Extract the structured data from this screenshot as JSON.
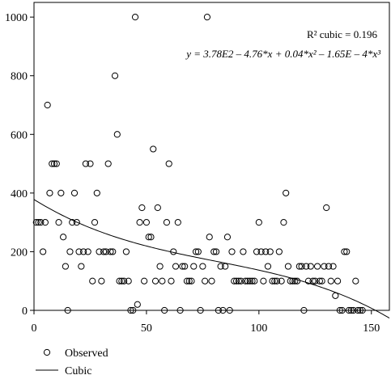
{
  "chart_data": {
    "type": "scatter",
    "title": "",
    "xlabel": "",
    "ylabel": "",
    "xlim": [
      0,
      158
    ],
    "ylim": [
      0,
      1050
    ],
    "x_ticks": [
      0,
      50,
      100,
      150
    ],
    "y_ticks": [
      0,
      200,
      400,
      600,
      800,
      1000
    ],
    "grid": false,
    "legend_position": "bottom-left",
    "annotation": {
      "r2_text": "R² cubic = 0.196",
      "equation": "y = 3.78E2 – 4.76*x + 0.04*x² – 1.65E – 4*x³"
    },
    "series": [
      {
        "name": "Observed",
        "kind": "scatter",
        "marker": "open-circle",
        "color": "#000000",
        "points": [
          [
            1,
            300
          ],
          [
            2,
            300
          ],
          [
            3,
            300
          ],
          [
            4,
            200
          ],
          [
            5,
            300
          ],
          [
            6,
            700
          ],
          [
            7,
            400
          ],
          [
            8,
            500
          ],
          [
            9,
            500
          ],
          [
            10,
            500
          ],
          [
            11,
            300
          ],
          [
            12,
            400
          ],
          [
            13,
            250
          ],
          [
            14,
            150
          ],
          [
            15,
            0
          ],
          [
            16,
            200
          ],
          [
            17,
            300
          ],
          [
            18,
            400
          ],
          [
            19,
            300
          ],
          [
            20,
            200
          ],
          [
            21,
            150
          ],
          [
            22,
            200
          ],
          [
            23,
            500
          ],
          [
            24,
            200
          ],
          [
            25,
            500
          ],
          [
            26,
            100
          ],
          [
            27,
            300
          ],
          [
            28,
            400
          ],
          [
            29,
            200
          ],
          [
            30,
            100
          ],
          [
            31,
            200
          ],
          [
            32,
            200
          ],
          [
            33,
            500
          ],
          [
            34,
            200
          ],
          [
            35,
            200
          ],
          [
            36,
            800
          ],
          [
            37,
            600
          ],
          [
            38,
            100
          ],
          [
            39,
            100
          ],
          [
            40,
            100
          ],
          [
            41,
            200
          ],
          [
            42,
            100
          ],
          [
            43,
            0
          ],
          [
            44,
            0
          ],
          [
            45,
            1000
          ],
          [
            46,
            20
          ],
          [
            47,
            300
          ],
          [
            48,
            350
          ],
          [
            49,
            100
          ],
          [
            50,
            300
          ],
          [
            51,
            250
          ],
          [
            52,
            250
          ],
          [
            53,
            550
          ],
          [
            54,
            100
          ],
          [
            55,
            350
          ],
          [
            56,
            150
          ],
          [
            57,
            100
          ],
          [
            58,
            0
          ],
          [
            59,
            300
          ],
          [
            60,
            500
          ],
          [
            61,
            100
          ],
          [
            62,
            200
          ],
          [
            63,
            150
          ],
          [
            64,
            300
          ],
          [
            65,
            0
          ],
          [
            66,
            150
          ],
          [
            67,
            150
          ],
          [
            68,
            100
          ],
          [
            69,
            100
          ],
          [
            70,
            100
          ],
          [
            71,
            150
          ],
          [
            72,
            200
          ],
          [
            73,
            200
          ],
          [
            74,
            0
          ],
          [
            75,
            150
          ],
          [
            76,
            100
          ],
          [
            77,
            1000
          ],
          [
            78,
            250
          ],
          [
            79,
            100
          ],
          [
            80,
            200
          ],
          [
            81,
            200
          ],
          [
            82,
            0
          ],
          [
            83,
            150
          ],
          [
            84,
            0
          ],
          [
            85,
            150
          ],
          [
            86,
            250
          ],
          [
            87,
            0
          ],
          [
            88,
            200
          ],
          [
            89,
            100
          ],
          [
            90,
            100
          ],
          [
            91,
            100
          ],
          [
            92,
            100
          ],
          [
            93,
            200
          ],
          [
            94,
            100
          ],
          [
            95,
            100
          ],
          [
            96,
            100
          ],
          [
            97,
            100
          ],
          [
            98,
            100
          ],
          [
            99,
            200
          ],
          [
            100,
            300
          ],
          [
            101,
            200
          ],
          [
            102,
            100
          ],
          [
            103,
            200
          ],
          [
            104,
            150
          ],
          [
            105,
            200
          ],
          [
            106,
            100
          ],
          [
            107,
            100
          ],
          [
            108,
            100
          ],
          [
            109,
            200
          ],
          [
            110,
            100
          ],
          [
            111,
            300
          ],
          [
            112,
            400
          ],
          [
            113,
            150
          ],
          [
            114,
            100
          ],
          [
            115,
            100
          ],
          [
            116,
            100
          ],
          [
            117,
            100
          ],
          [
            118,
            150
          ],
          [
            119,
            150
          ],
          [
            120,
            0
          ],
          [
            121,
            150
          ],
          [
            122,
            100
          ],
          [
            123,
            150
          ],
          [
            124,
            100
          ],
          [
            125,
            100
          ],
          [
            126,
            150
          ],
          [
            127,
            100
          ],
          [
            128,
            100
          ],
          [
            129,
            150
          ],
          [
            130,
            350
          ],
          [
            131,
            150
          ],
          [
            132,
            100
          ],
          [
            133,
            150
          ],
          [
            134,
            50
          ],
          [
            135,
            100
          ],
          [
            136,
            0
          ],
          [
            137,
            0
          ],
          [
            138,
            200
          ],
          [
            139,
            200
          ],
          [
            140,
            0
          ],
          [
            141,
            0
          ],
          [
            142,
            0
          ],
          [
            143,
            100
          ],
          [
            144,
            0
          ],
          [
            145,
            0
          ],
          [
            146,
            0
          ]
        ]
      },
      {
        "name": "Cubic",
        "kind": "line",
        "color": "#000000",
        "coefficients": {
          "b0": 378,
          "b1": -4.76,
          "b2": 0.04,
          "b3": -0.000165
        },
        "x_range": [
          0,
          158
        ]
      }
    ]
  }
}
